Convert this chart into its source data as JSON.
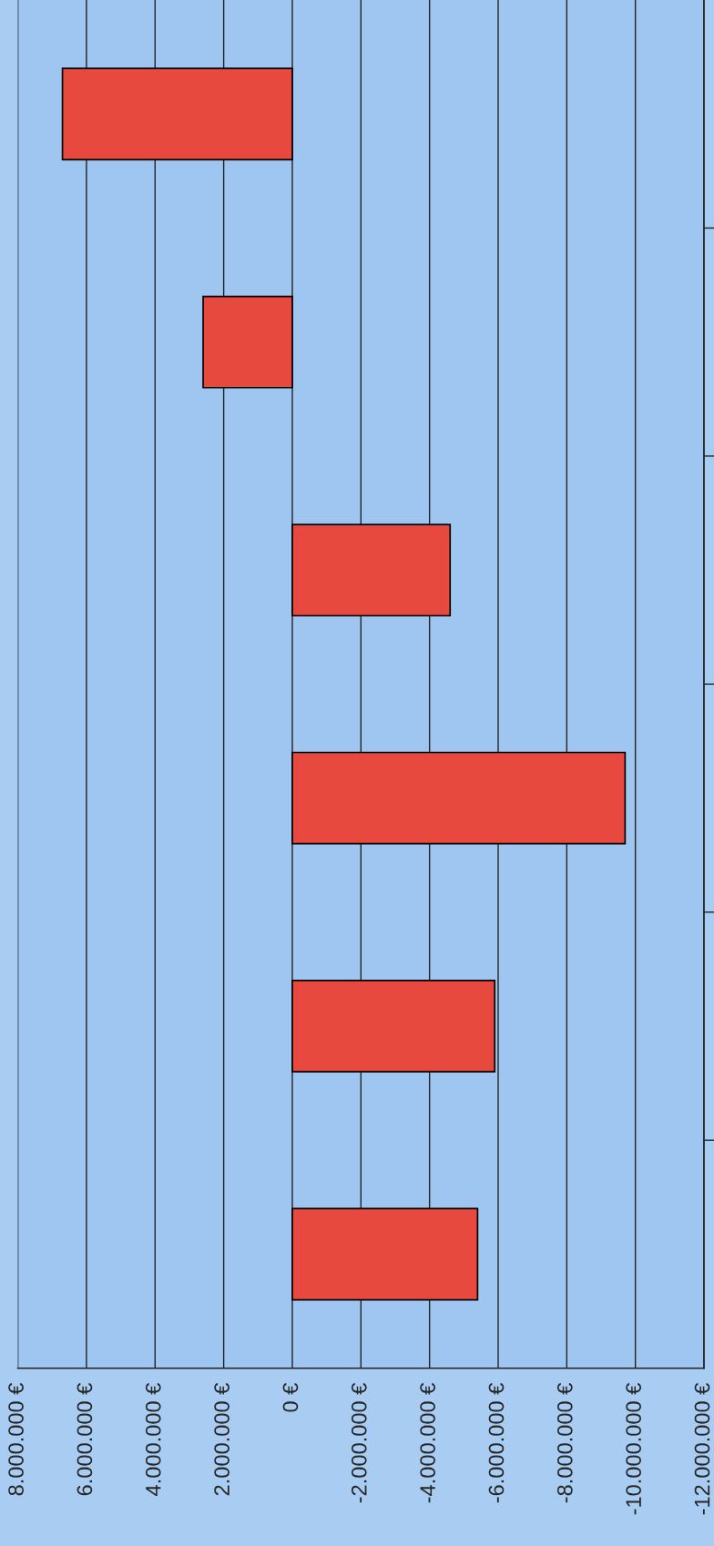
{
  "chart_data": {
    "type": "bar",
    "orientation": "horizontal",
    "categories": [
      null,
      null,
      null,
      null,
      null,
      null
    ],
    "values": [
      6700000,
      2600000,
      -4600000,
      -9700000,
      -5900000,
      -5400000
    ],
    "color": "#e8493f",
    "xlim": [
      8000000,
      -12000000
    ],
    "xticks": [
      {
        "value": 8000000,
        "label": "8.000.000 €"
      },
      {
        "value": 6000000,
        "label": "6.000.000 €"
      },
      {
        "value": 4000000,
        "label": "4.000.000 €"
      },
      {
        "value": 2000000,
        "label": "2.000.000 €"
      },
      {
        "value": 0,
        "label": "0 €"
      },
      {
        "value": -2000000,
        "label": "-2.000.000 €"
      },
      {
        "value": -4000000,
        "label": "-4.000.000 €"
      },
      {
        "value": -6000000,
        "label": "-6.000.000 €"
      },
      {
        "value": -8000000,
        "label": "-8.000.000 €"
      },
      {
        "value": -10000000,
        "label": "-10.000.000 €"
      },
      {
        "value": -12000000,
        "label": "-12.000.000 €"
      }
    ],
    "grid": "x",
    "tick_labels": "x"
  }
}
